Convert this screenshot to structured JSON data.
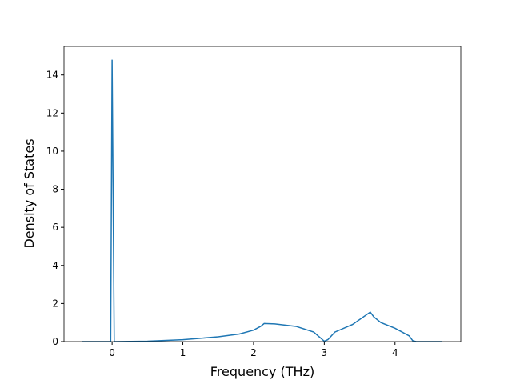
{
  "chart_data": {
    "type": "line",
    "xlabel": "Frequency (THz)",
    "ylabel": "Density of States",
    "x": [
      -0.43,
      -0.02,
      0.0,
      0.03,
      0.5,
      1.0,
      1.5,
      1.8,
      2.0,
      2.1,
      2.15,
      2.3,
      2.6,
      2.85,
      3.0,
      3.05,
      3.15,
      3.4,
      3.65,
      3.7,
      3.8,
      4.0,
      4.2,
      4.25,
      4.3,
      4.67
    ],
    "series": [
      {
        "color": "#1f77b4",
        "values": [
          0,
          0,
          14.8,
          0,
          0.02,
          0.1,
          0.25,
          0.4,
          0.6,
          0.8,
          0.95,
          0.93,
          0.8,
          0.5,
          0.02,
          0.1,
          0.5,
          0.9,
          1.55,
          1.3,
          1.0,
          0.7,
          0.3,
          0.05,
          0,
          0
        ]
      }
    ],
    "xlim": [
      -0.68,
      4.93
    ],
    "ylim": [
      0,
      15.5
    ],
    "xticks": [
      0,
      1,
      2,
      3,
      4
    ],
    "yticks": [
      0,
      2,
      4,
      6,
      8,
      10,
      12,
      14
    ]
  }
}
